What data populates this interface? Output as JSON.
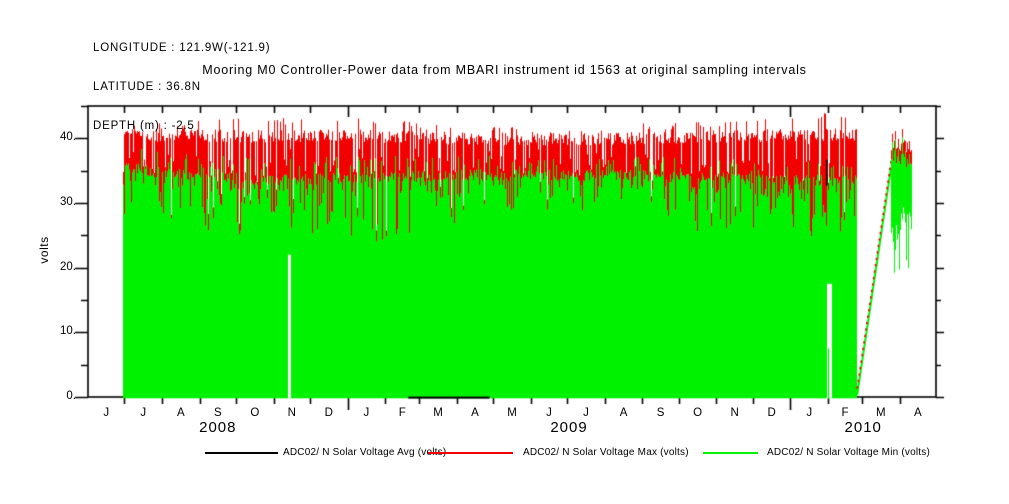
{
  "header": {
    "longitude": "LONGITUDE : 121.9W(-121.9)",
    "latitude": "LATITUDE : 36.8N",
    "depth": "DEPTH (m) : -2.5"
  },
  "title": "Mooring M0 Controller-Power data from MBARI instrument id 1563 at original sampling intervals",
  "chart_data": {
    "type": "area",
    "title": "Mooring M0 Controller-Power data from MBARI instrument id 1563 at original sampling intervals",
    "ylabel": "volts",
    "ylim": [
      0,
      45
    ],
    "grid": false,
    "yticks": [
      {
        "v": 0,
        "label": "0."
      },
      {
        "v": 10,
        "label": "10."
      },
      {
        "v": 20,
        "label": "20."
      },
      {
        "v": 30,
        "label": "30."
      },
      {
        "v": 40,
        "label": "40."
      }
    ],
    "yticks_minor": [
      5,
      15,
      25,
      35,
      45
    ],
    "x_domain": {
      "start": "2008-06-01",
      "end": "2010-05-01",
      "total_days": 699
    },
    "month_lengths": [
      30,
      31,
      31,
      30,
      31,
      30,
      31,
      31,
      28,
      31,
      30,
      31,
      30,
      31,
      31,
      30,
      31,
      30,
      31,
      31,
      28,
      31,
      30
    ],
    "month_labels": [
      "J",
      "J",
      "A",
      "S",
      "O",
      "N",
      "D",
      "J",
      "F",
      "M",
      "A",
      "M",
      "J",
      "J",
      "A",
      "S",
      "O",
      "N",
      "D",
      "J",
      "F",
      "M",
      "A"
    ],
    "year_boundary_days": [
      214,
      579
    ],
    "year_labels": [
      "2008",
      "2009",
      "2010"
    ],
    "series": [
      {
        "name": "avg",
        "label": "ADC02/ N Solar Voltage Avg (volts)",
        "color": "#000000"
      },
      {
        "name": "max",
        "label": "ADC02/ N Solar Voltage Max (volts)",
        "color": "#f20000"
      },
      {
        "name": "min",
        "label": "ADC02/ N Solar Voltage Min (volts)",
        "color": "#00f200"
      }
    ],
    "main_band": {
      "start_day": 29,
      "end_day": 633,
      "description": "Min (green) fills 0 to ~34 V; Max (red) band fills from green top to ~40.5 V with spikes",
      "keyframes": [
        {
          "day": 29,
          "green_top": 35.6,
          "dip_floor": 28,
          "dip_prob": 0.22,
          "red_top": 40.6,
          "red_peak": 42.0
        },
        {
          "day": 60,
          "green_top": 34.6,
          "dip_floor": 27,
          "dip_prob": 0.3,
          "red_top": 40.5,
          "red_peak": 42.5
        },
        {
          "day": 100,
          "green_top": 34.0,
          "dip_floor": 25,
          "dip_prob": 0.35,
          "red_top": 40.4,
          "red_peak": 43.0
        },
        {
          "day": 150,
          "green_top": 33.6,
          "dip_floor": 24,
          "dip_prob": 0.4,
          "red_top": 40.3,
          "red_peak": 43.2
        },
        {
          "day": 214,
          "green_top": 33.8,
          "dip_floor": 23,
          "dip_prob": 0.4,
          "red_top": 40.5,
          "red_peak": 43.8
        },
        {
          "day": 245,
          "green_top": 34.0,
          "dip_floor": 24,
          "dip_prob": 0.38,
          "red_top": 40.3,
          "red_peak": 43.0
        },
        {
          "day": 300,
          "green_top": 34.3,
          "dip_floor": 26,
          "dip_prob": 0.3,
          "red_top": 40.0,
          "red_peak": 42.0
        },
        {
          "day": 395,
          "green_top": 34.3,
          "dip_floor": 28,
          "dip_prob": 0.22,
          "red_top": 39.8,
          "red_peak": 41.5
        },
        {
          "day": 457,
          "green_top": 34.2,
          "dip_floor": 27,
          "dip_prob": 0.28,
          "red_top": 40.0,
          "red_peak": 42.3
        },
        {
          "day": 520,
          "green_top": 33.8,
          "dip_floor": 25,
          "dip_prob": 0.35,
          "red_top": 40.3,
          "red_peak": 43.0
        },
        {
          "day": 580,
          "green_top": 33.6,
          "dip_floor": 24,
          "dip_prob": 0.4,
          "red_top": 40.5,
          "red_peak": 43.5
        },
        {
          "day": 610,
          "green_top": 33.5,
          "dip_floor": 24,
          "dip_prob": 0.4,
          "red_top": 40.6,
          "red_peak": 44.0
        },
        {
          "day": 633,
          "green_top": 33.5,
          "dip_floor": 25,
          "dip_prob": 0.35,
          "red_top": 40.5,
          "red_peak": 43.0
        }
      ]
    },
    "anomalies": {
      "gap_2008_11": {
        "day_start": 164.4,
        "day_end": 166.6,
        "green_floor_volts": 22
      },
      "spike_2010_01": {
        "day": 607.2,
        "half_width_days": 0.8,
        "red_top_volts": 44,
        "green_top_volts": 28.5
      },
      "gap_2010_01": {
        "day_start": 608.6,
        "day_end": 612.8,
        "green_floor_volts": 17.5,
        "inner_green_spike": {
          "day_start": 609.9,
          "day_end": 610.8,
          "top_volts": 7.5
        },
        "avg_mark": {
          "day_start": 608.3,
          "day_end": 609.2,
          "from_volts": 32.7,
          "to_volts": 36.7
        }
      },
      "avg_zero_segment": {
        "day_start": 264,
        "day_end": 331,
        "volts": 0.1
      }
    },
    "ramp": {
      "day_start": 634,
      "day_end": 662,
      "from_volts": 0.3,
      "to_volts": 35.5
    },
    "tail": {
      "day_start": 662,
      "day_end": 678.5,
      "red_top_base": 38.8,
      "red_top_jitter": 2.4,
      "red_band_thickness": [
        1.2,
        2.7
      ],
      "green_bottom_base": 27,
      "green_bottom_jitter": 6,
      "deep_spike_floor": 19,
      "deep_spike_prob": 0.3
    }
  }
}
